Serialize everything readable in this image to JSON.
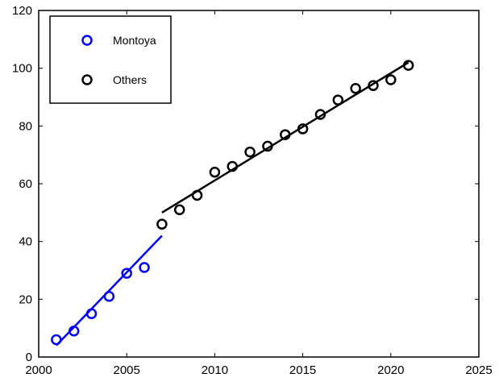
{
  "chart_data": {
    "type": "scatter",
    "title": "",
    "xlabel": "",
    "ylabel": "",
    "xlim": [
      2000,
      2025
    ],
    "ylim": [
      0,
      120
    ],
    "xticks": [
      2000,
      2005,
      2010,
      2015,
      2020,
      2025
    ],
    "yticks": [
      0,
      20,
      40,
      60,
      80,
      100,
      120
    ],
    "grid": false,
    "legend_position": "top-left",
    "series": [
      {
        "name": "Montoya",
        "color": "#0000ff",
        "marker": "circle-open",
        "x": [
          2001,
          2002,
          2003,
          2004,
          2005,
          2006
        ],
        "y": [
          6,
          9,
          15,
          21,
          29,
          31
        ],
        "fit_line": {
          "x": [
            2001,
            2007
          ],
          "y": [
            4,
            42
          ]
        }
      },
      {
        "name": "Others",
        "color": "#000000",
        "marker": "circle-open",
        "x": [
          2007,
          2008,
          2009,
          2010,
          2011,
          2012,
          2013,
          2014,
          2015,
          2016,
          2017,
          2018,
          2019,
          2020,
          2021
        ],
        "y": [
          46,
          51,
          56,
          64,
          66,
          71,
          73,
          77,
          79,
          84,
          89,
          93,
          94,
          96,
          101
        ],
        "fit_line": {
          "x": [
            2007,
            2021
          ],
          "y": [
            50,
            102
          ]
        }
      }
    ]
  }
}
